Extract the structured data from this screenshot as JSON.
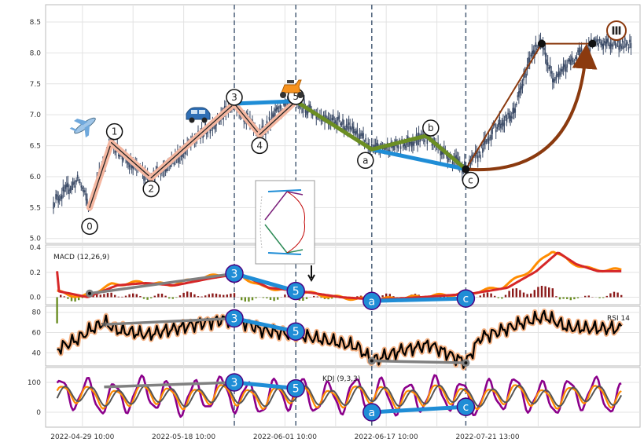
{
  "chart_data": [
    {
      "type": "candlestick",
      "panel": "price",
      "yticks": [
        "5.0",
        "5.5",
        "6.0",
        "6.5",
        "7.0",
        "7.5",
        "8.0",
        "8.5"
      ],
      "ylim": [
        4.92,
        8.78
      ],
      "xlim": [
        0,
        160
      ],
      "grid": true,
      "candle_color": "#3a4a66",
      "wave_points": [
        {
          "label": "0",
          "x": 10,
          "y": 5.5
        },
        {
          "label": "1",
          "x": 16,
          "y": 6.55
        },
        {
          "label": "2",
          "x": 27,
          "y": 5.98
        },
        {
          "label": "3",
          "x": 50,
          "y": 7.18
        },
        {
          "label": "4",
          "x": 57,
          "y": 6.68
        },
        {
          "label": "5",
          "x": 67,
          "y": 7.22
        },
        {
          "label": "a",
          "x": 88,
          "y": 6.44
        },
        {
          "label": "b",
          "x": 103,
          "y": 6.66
        },
        {
          "label": "c",
          "x": 114,
          "y": 6.12
        }
      ],
      "projection_label": "Ⅲ",
      "projection_target": {
        "x": 149,
        "y": 8.15
      },
      "projection_peak": {
        "x": 135,
        "y": 8.15
      }
    },
    {
      "type": "line",
      "panel": "macd",
      "label": "MACD (12,26,9)",
      "yticks": [
        "0.0",
        "0.2",
        "0.4"
      ],
      "ylim": [
        -0.06,
        0.42
      ],
      "series_colors": [
        "#ff8c00",
        "#d62728"
      ],
      "hist_up": "#8b1a1a",
      "hist_down": "#6b8e23",
      "divergence": [
        {
          "from": "3",
          "to": "5"
        },
        {
          "from": "a",
          "to": "c"
        }
      ]
    },
    {
      "type": "line",
      "panel": "rsi",
      "label": "RSI 14",
      "yticks": [
        "40",
        "60",
        "80"
      ],
      "ylim": [
        27,
        86
      ],
      "line_color": "#000000",
      "halo_color": "#f4b183",
      "divergence": [
        {
          "from": "3",
          "to": "5"
        }
      ]
    },
    {
      "type": "line",
      "panel": "kdj",
      "label": "KDJ (9,3,3)",
      "yticks": [
        "0",
        "100"
      ],
      "ylim": [
        -50,
        150
      ],
      "series_colors": [
        "#8b008b",
        "#ff8c00",
        "#555555"
      ],
      "divergence": [
        {
          "from": "3",
          "to": "5"
        },
        {
          "from": "a",
          "to": "c"
        }
      ]
    }
  ],
  "x_axis": {
    "tick_labels": [
      "2022-04-29 10:00",
      "2022-05-18 10:00",
      "2022-06-01 10:00",
      "2022-06-17 10:00",
      "2022-07-21 13:00"
    ],
    "tick_x": [
      8,
      36,
      64,
      92,
      120
    ],
    "vlines_x": [
      50,
      67,
      88,
      114
    ]
  },
  "colors": {
    "impulse_halo": "#f4b6a0",
    "correction": "#6b8e23",
    "trend_blue": "#1f8dd6",
    "projection": "#8b3a0f",
    "divergence_gray": "#808080",
    "badge_blue": "#1f8dd6",
    "badge_border": "#4b0082"
  },
  "icons": [
    "airplane-icon",
    "car-icon",
    "scooter-icon",
    "elliott-wave-thumbnail-icon"
  ]
}
